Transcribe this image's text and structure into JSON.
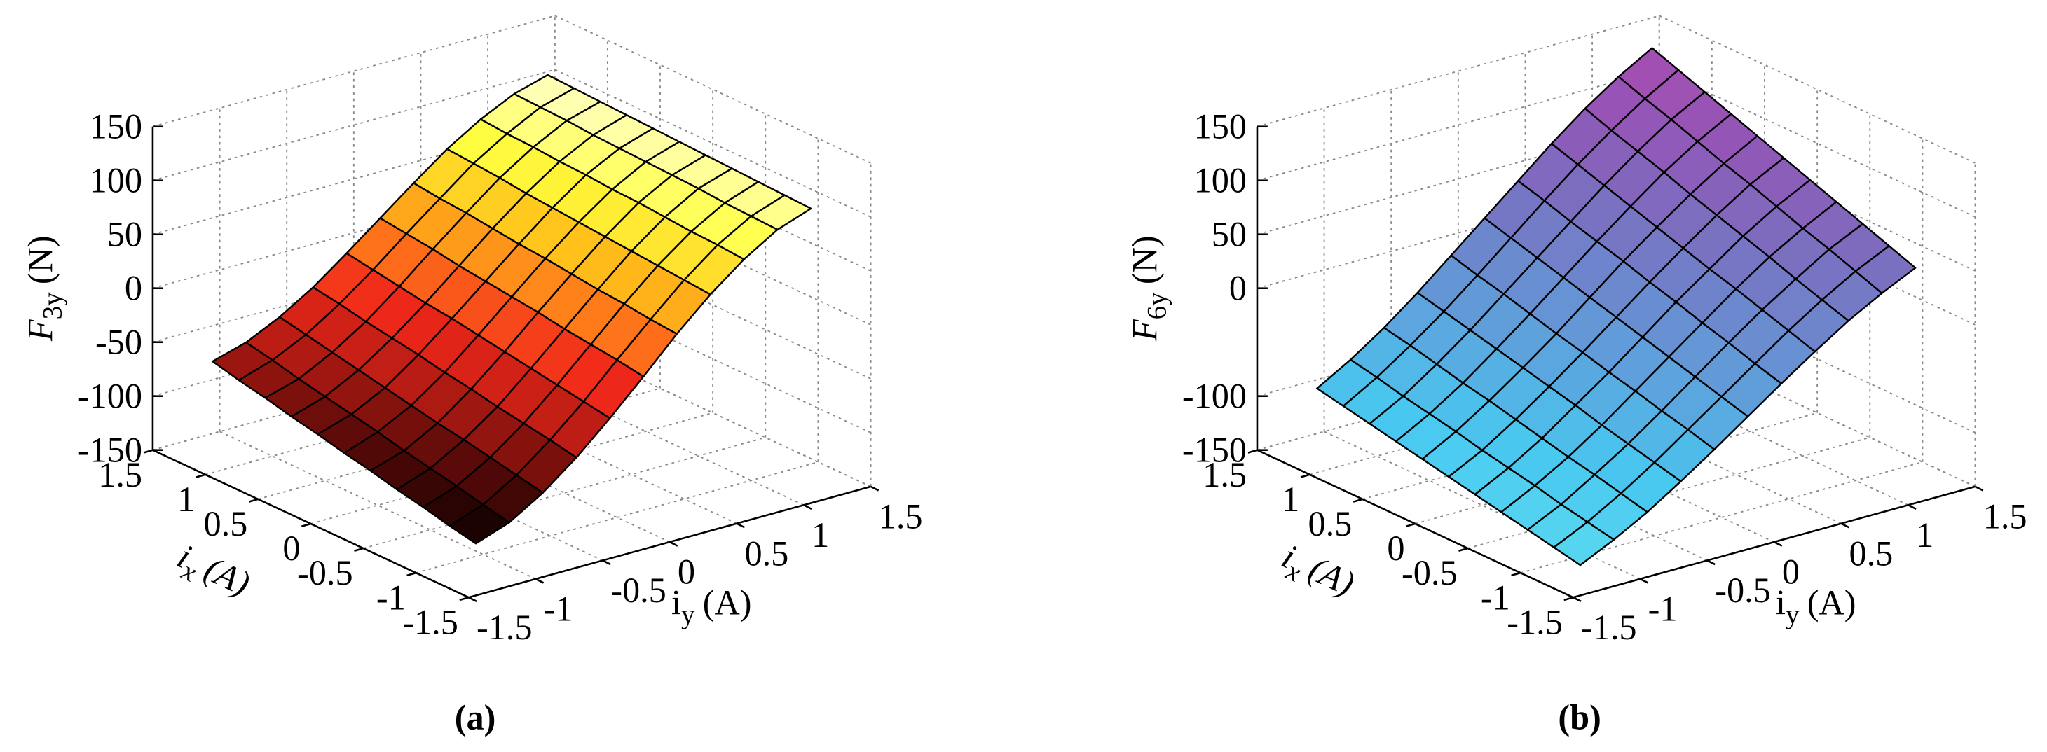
{
  "chart_data": [
    {
      "type": "surface",
      "zlabel": {
        "main": "F",
        "sub": "3y",
        "rest": "(N)"
      },
      "xlabel": {
        "main": "i",
        "sub": "x",
        "rest": "(A)"
      },
      "ylabel": {
        "main": "i",
        "sub": "y",
        "rest": "(A)"
      },
      "caption": "(a)",
      "x": [
        -1.25,
        -1,
        -0.75,
        -0.5,
        -0.25,
        0,
        0.25,
        0.5,
        0.75,
        1,
        1.25
      ],
      "y": [
        -1.25,
        -1,
        -0.75,
        -0.5,
        -0.25,
        0,
        0.25,
        0.5,
        0.75,
        1,
        1.25
      ],
      "z": [
        [
          -120,
          -109,
          -90,
          -66,
          -38,
          -8,
          23,
          51,
          75,
          94,
          105
        ],
        [
          -115,
          -104,
          -85,
          -61,
          -34,
          -4,
          25,
          53,
          77,
          95,
          106
        ],
        [
          -109,
          -98,
          -80,
          -57,
          -30,
          -1,
          28,
          55,
          78,
          96,
          107
        ],
        [
          -104,
          -93,
          -75,
          -53,
          -26,
          2,
          30,
          57,
          80,
          98,
          108
        ],
        [
          -98,
          -88,
          -71,
          -48,
          -22,
          6,
          33,
          59,
          82,
          99,
          109
        ],
        [
          -93,
          -82,
          -66,
          -44,
          -18,
          9,
          36,
          61,
          83,
          100,
          110
        ],
        [
          -87,
          -77,
          -61,
          -39,
          -14,
          12,
          38,
          63,
          85,
          101,
          111
        ],
        [
          -82,
          -72,
          -56,
          -35,
          -11,
          15,
          41,
          65,
          86,
          102,
          112
        ],
        [
          -76,
          -67,
          -51,
          -31,
          -7,
          19,
          44,
          68,
          88,
          104,
          113
        ],
        [
          -71,
          -61,
          -46,
          -26,
          -3,
          22,
          46,
          70,
          89,
          105,
          114
        ],
        [
          -65,
          -56,
          -41,
          -22,
          1,
          25,
          49,
          72,
          91,
          106,
          115
        ]
      ],
      "xlim": [
        -1.5,
        1.5
      ],
      "ylim": [
        -1.5,
        1.5
      ],
      "zlim": [
        -150,
        150
      ],
      "xticks": [
        -1.5,
        -1,
        -0.5,
        0,
        0.5,
        1,
        1.5
      ],
      "yticks": [
        -1.5,
        -1,
        -0.5,
        0,
        0.5,
        1,
        1.5
      ],
      "zticks": [
        -150,
        -100,
        -50,
        0,
        50,
        100,
        150
      ],
      "grid": true,
      "colormap": [
        "#0a0000",
        "#5a0a08",
        "#b81c14",
        "#f0281a",
        "#ff7a1a",
        "#ffc21a",
        "#ffff40",
        "#ffffc8"
      ]
    },
    {
      "type": "surface",
      "zlabel": {
        "main": "F",
        "sub": "6y",
        "rest": "(N)"
      },
      "xlabel": {
        "main": "i",
        "sub": "x",
        "rest": "(A)"
      },
      "ylabel": {
        "main": "i",
        "sub": "y",
        "rest": "(A)"
      },
      "caption": "(b)",
      "x": [
        -1.25,
        -1,
        -0.75,
        -0.5,
        -0.25,
        0,
        0.25,
        0.5,
        0.75,
        1,
        1.25
      ],
      "y": [
        -1.25,
        -1,
        -0.75,
        -0.5,
        -0.25,
        0,
        0.25,
        0.5,
        0.75,
        1,
        1.25
      ],
      "z": [
        [
          -140,
          -125,
          -108,
          -88,
          -67,
          -45,
          -23,
          -2,
          18,
          35,
          50
        ],
        [
          -135,
          -120,
          -102,
          -82,
          -60,
          -38,
          -16,
          6,
          26,
          44,
          59
        ],
        [
          -130,
          -115,
          -96,
          -76,
          -54,
          -31,
          -8,
          14,
          34,
          53,
          68
        ],
        [
          -125,
          -109,
          -91,
          -70,
          -47,
          -24,
          -1,
          22,
          43,
          61,
          77
        ],
        [
          -120,
          -104,
          -85,
          -63,
          -41,
          -17,
          7,
          29,
          51,
          70,
          86
        ],
        [
          -115,
          -99,
          -79,
          -57,
          -34,
          -10,
          14,
          37,
          59,
          79,
          95
        ],
        [
          -110,
          -93,
          -73,
          -51,
          -28,
          -3,
          22,
          45,
          67,
          87,
          104
        ],
        [
          -105,
          -88,
          -68,
          -45,
          -21,
          4,
          29,
          53,
          76,
          96,
          113
        ],
        [
          -100,
          -83,
          -62,
          -39,
          -14,
          11,
          36,
          61,
          84,
          105,
          122
        ],
        [
          -95,
          -77,
          -56,
          -33,
          -8,
          18,
          44,
          69,
          92,
          113,
          131
        ],
        [
          -90,
          -72,
          -51,
          -27,
          -1,
          25,
          51,
          77,
          101,
          122,
          140
        ]
      ],
      "xlim": [
        -1.5,
        1.5
      ],
      "ylim": [
        -1.5,
        1.5
      ],
      "zlim": [
        -150,
        150
      ],
      "xticks": [
        -1.5,
        -1,
        -0.5,
        0,
        0.5,
        1,
        1.5
      ],
      "yticks": [
        -1.5,
        -1,
        -0.5,
        0,
        0.5,
        1,
        1.5
      ],
      "zticks": [
        -150,
        -100,
        0,
        50,
        100,
        150
      ],
      "grid": true,
      "colormap": [
        "#5ad8f0",
        "#48c8f0",
        "#5aa8e0",
        "#6a8cd0",
        "#7a70c0",
        "#9058b8",
        "#a84cb0"
      ]
    }
  ]
}
